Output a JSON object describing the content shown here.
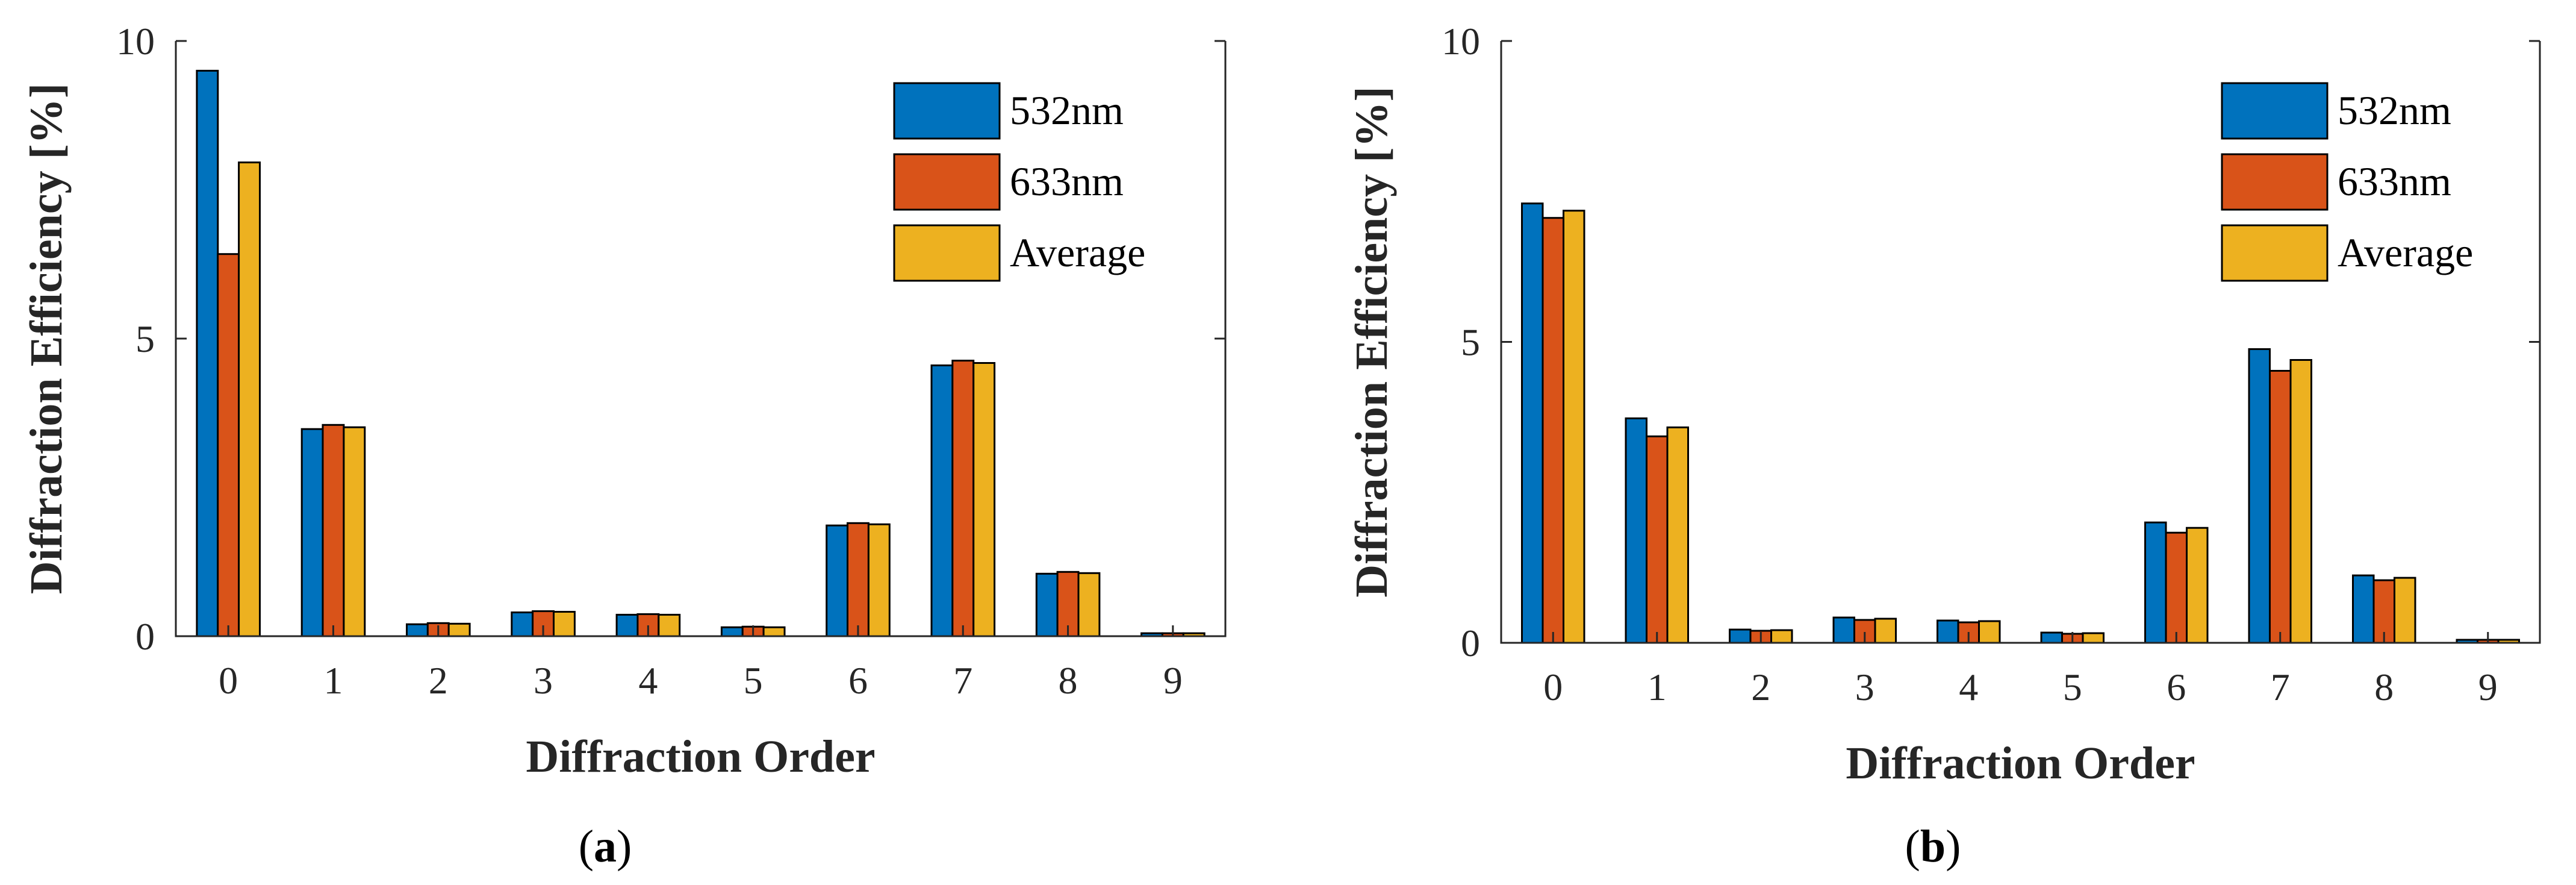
{
  "chart_data": [
    {
      "type": "bar",
      "panel": "a",
      "caption_open": "(",
      "caption_letter": "a",
      "caption_close": ")",
      "xlabel": "Diffraction Order",
      "ylabel": "Diffraction Efficiency [%]",
      "ylim": [
        0,
        10
      ],
      "yticks": [
        "0",
        "5",
        "10"
      ],
      "ytick_values": [
        0,
        5,
        10
      ],
      "categories": [
        "0",
        "1",
        "2",
        "3",
        "4",
        "5",
        "6",
        "7",
        "8",
        "9"
      ],
      "legend_position": "top-right",
      "series": [
        {
          "name": "532nm",
          "color": "#0072BD",
          "values": [
            9.5,
            3.48,
            0.2,
            0.4,
            0.36,
            0.15,
            1.86,
            4.55,
            1.05,
            0.05
          ]
        },
        {
          "name": "633nm",
          "color": "#D95319",
          "values": [
            6.42,
            3.55,
            0.22,
            0.42,
            0.37,
            0.16,
            1.9,
            4.63,
            1.08,
            0.05
          ]
        },
        {
          "name": "Average",
          "color": "#EDB120",
          "values": [
            7.96,
            3.51,
            0.21,
            0.41,
            0.36,
            0.15,
            1.88,
            4.59,
            1.06,
            0.05
          ]
        }
      ]
    },
    {
      "type": "bar",
      "panel": "b",
      "caption_open": "(",
      "caption_letter": "b",
      "caption_close": ")",
      "xlabel": "Diffraction Order",
      "ylabel": "Diffraction Efficiency [%]",
      "ylim": [
        0,
        10
      ],
      "yticks": [
        "0",
        "5",
        "10"
      ],
      "ytick_values": [
        0,
        5,
        10
      ],
      "categories": [
        "0",
        "1",
        "2",
        "3",
        "4",
        "5",
        "6",
        "7",
        "8",
        "9"
      ],
      "legend_position": "top-right",
      "series": [
        {
          "name": "532nm",
          "color": "#0072BD",
          "values": [
            7.3,
            3.73,
            0.22,
            0.42,
            0.37,
            0.17,
            2.0,
            4.88,
            1.12,
            0.05
          ]
        },
        {
          "name": "633nm",
          "color": "#D95319",
          "values": [
            7.06,
            3.43,
            0.2,
            0.38,
            0.34,
            0.15,
            1.83,
            4.52,
            1.04,
            0.05
          ]
        },
        {
          "name": "Average",
          "color": "#EDB120",
          "values": [
            7.18,
            3.58,
            0.21,
            0.4,
            0.36,
            0.16,
            1.91,
            4.7,
            1.08,
            0.05
          ]
        }
      ]
    }
  ]
}
